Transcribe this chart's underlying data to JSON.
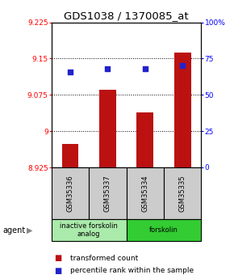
{
  "title": "GDS1038 / 1370085_at",
  "samples": [
    "GSM35336",
    "GSM35337",
    "GSM35334",
    "GSM35335"
  ],
  "bar_values": [
    8.974,
    9.085,
    9.038,
    9.163
  ],
  "bar_base": 8.925,
  "blue_dot_values": [
    66,
    68,
    68,
    70
  ],
  "ylim_left": [
    8.925,
    9.225
  ],
  "ylim_right": [
    0,
    100
  ],
  "yticks_left": [
    8.925,
    9.0,
    9.075,
    9.15,
    9.225
  ],
  "yticks_right": [
    0,
    25,
    50,
    75,
    100
  ],
  "ytick_labels_left": [
    "8.925",
    "9",
    "9.075",
    "9.15",
    "9.225"
  ],
  "ytick_labels_right": [
    "0",
    "25",
    "50",
    "75",
    "100%"
  ],
  "hlines": [
    9.0,
    9.075,
    9.15
  ],
  "bar_color": "#bb1111",
  "dot_color": "#2222cc",
  "agent_groups": [
    {
      "label": "inactive forskolin\nanalog",
      "span": [
        0,
        2
      ],
      "color": "#aaeaaa"
    },
    {
      "label": "forskolin",
      "span": [
        2,
        4
      ],
      "color": "#33cc33"
    }
  ],
  "legend_bar_label": "transformed count",
  "legend_dot_label": "percentile rank within the sample",
  "background_color": "#ffffff",
  "plot_bg": "#ffffff",
  "bar_width": 0.45,
  "sample_box_color": "#cccccc",
  "title_fontsize": 9.5,
  "tick_fontsize": 6.5,
  "label_fontsize": 6.0,
  "legend_fontsize": 6.5
}
